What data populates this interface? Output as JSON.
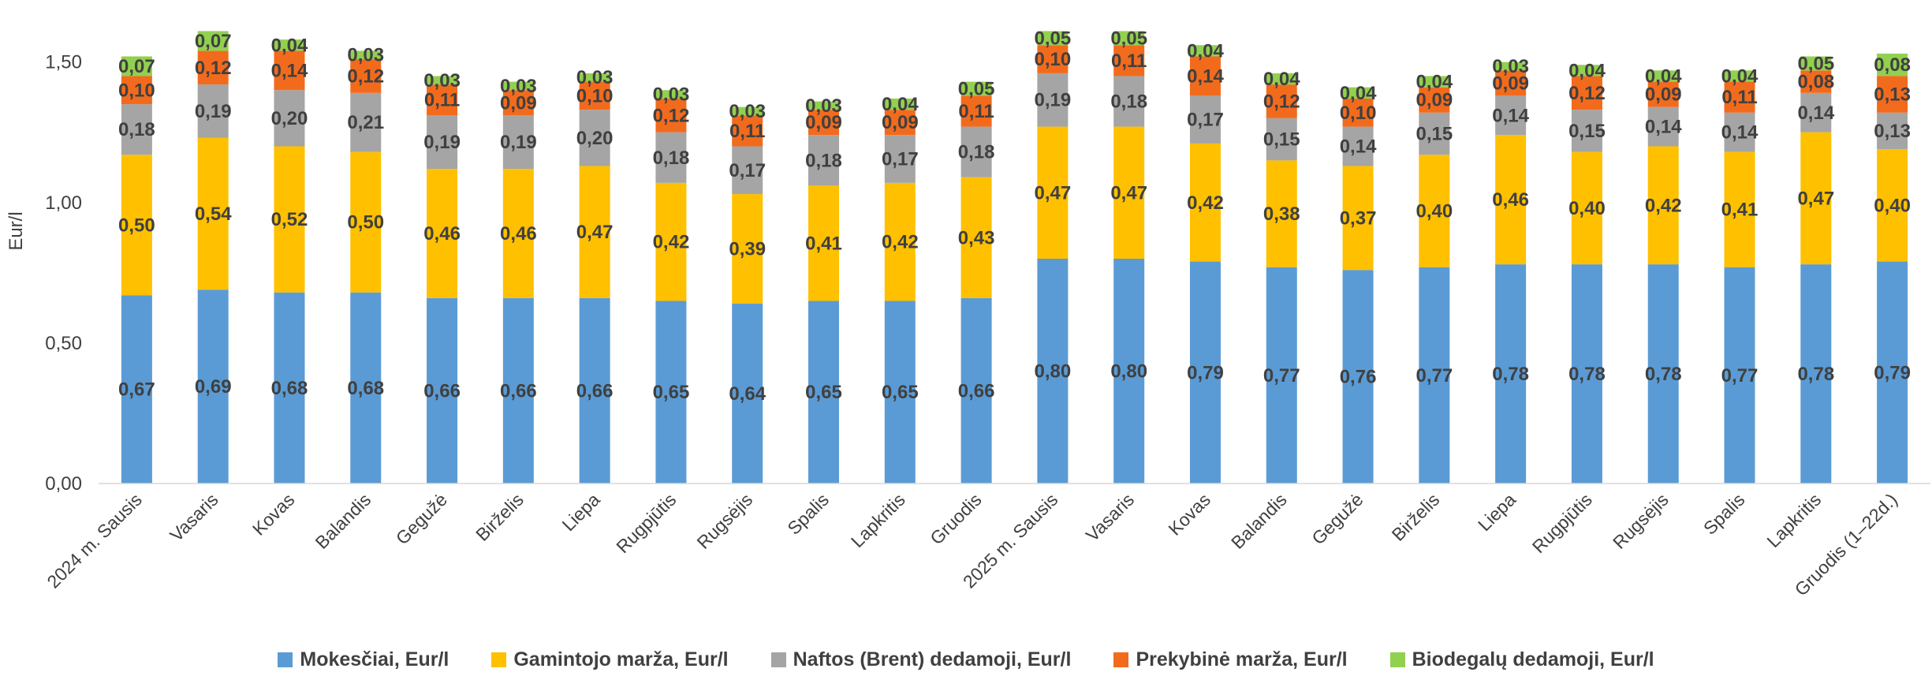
{
  "chart_data": {
    "type": "bar",
    "stacked": true,
    "ylabel": "Eur/l",
    "ylim": [
      0,
      1.6
    ],
    "yticks": [
      "0,00",
      "0,50",
      "1,00",
      "1,50"
    ],
    "ytick_values": [
      0,
      0.5,
      1.0,
      1.5
    ],
    "grid": false,
    "legend_position": "bottom",
    "categories": [
      "2024 m. Sausis",
      "Vasaris",
      "Kovas",
      "Balandis",
      "Gegužė",
      "Birželis",
      "Liepa",
      "Rugpjūtis",
      "Rugsėjis",
      "Spalis",
      "Lapkritis",
      "Gruodis",
      "2025 m. Sausis",
      "Vasaris",
      "Kovas",
      "Balandis",
      "Gegužė",
      "Birželis",
      "Liepa",
      "Rugpjūtis",
      "Rugsėjis",
      "Spalis",
      "Lapkritis",
      "Gruodis (1–22d.)"
    ],
    "series": [
      {
        "name": "Mokesčiai, Eur/l",
        "color": "#5B9BD5",
        "values": [
          0.67,
          0.69,
          0.68,
          0.68,
          0.66,
          0.66,
          0.66,
          0.65,
          0.64,
          0.65,
          0.65,
          0.66,
          0.8,
          0.8,
          0.79,
          0.77,
          0.76,
          0.77,
          0.78,
          0.78,
          0.78,
          0.77,
          0.78,
          0.79
        ],
        "labels": [
          "0,67",
          "0,69",
          "0,68",
          "0,68",
          "0,66",
          "0,66",
          "0,66",
          "0,65",
          "0,64",
          "0,65",
          "0,65",
          "0,66",
          "0,80",
          "0,80",
          "0,79",
          "0,77",
          "0,76",
          "0,77",
          "0,78",
          "0,78",
          "0,78",
          "0,77",
          "0,78",
          "0,79"
        ]
      },
      {
        "name": "Gamintojo marža, Eur/l",
        "color": "#FFC000",
        "values": [
          0.5,
          0.54,
          0.52,
          0.5,
          0.46,
          0.46,
          0.47,
          0.42,
          0.39,
          0.41,
          0.42,
          0.43,
          0.47,
          0.47,
          0.42,
          0.38,
          0.37,
          0.4,
          0.46,
          0.4,
          0.42,
          0.41,
          0.47,
          0.4
        ],
        "labels": [
          "0,50",
          "0,54",
          "0,52",
          "0,50",
          "0,46",
          "0,46",
          "0,47",
          "0,42",
          "0,39",
          "0,41",
          "0,42",
          "0,43",
          "0,47",
          "0,47",
          "0,42",
          "0,38",
          "0,37",
          "0,40",
          "0,46",
          "0,40",
          "0,42",
          "0,41",
          "0,47",
          "0,40"
        ]
      },
      {
        "name": "Naftos (Brent) dedamoji, Eur/l",
        "color": "#A5A5A5",
        "values": [
          0.18,
          0.19,
          0.2,
          0.21,
          0.19,
          0.19,
          0.2,
          0.18,
          0.17,
          0.18,
          0.17,
          0.18,
          0.19,
          0.18,
          0.17,
          0.15,
          0.14,
          0.15,
          0.14,
          0.15,
          0.14,
          0.14,
          0.14,
          0.13
        ],
        "labels": [
          "0,18",
          "0,19",
          "0,20",
          "0,21",
          "0,19",
          "0,19",
          "0,20",
          "0,18",
          "0,17",
          "0,18",
          "0,17",
          "0,18",
          "0,19",
          "0,18",
          "0,17",
          "0,15",
          "0,14",
          "0,15",
          "0,14",
          "0,15",
          "0,14",
          "0,14",
          "0,14",
          "0,13"
        ]
      },
      {
        "name": "Prekybinė marža, Eur/l",
        "color": "#F26B1D",
        "values": [
          0.1,
          0.12,
          0.14,
          0.12,
          0.11,
          0.09,
          0.1,
          0.12,
          0.11,
          0.09,
          0.09,
          0.11,
          0.1,
          0.11,
          0.14,
          0.12,
          0.1,
          0.09,
          0.09,
          0.12,
          0.09,
          0.11,
          0.08,
          0.13
        ],
        "labels": [
          "0,10",
          "0,12",
          "0,14",
          "0,12",
          "0,11",
          "0,09",
          "0,10",
          "0,12",
          "0,11",
          "0,09",
          "0,09",
          "0,11",
          "0,10",
          "0,11",
          "0,14",
          "0,12",
          "0,10",
          "0,09",
          "0,09",
          "0,12",
          "0,09",
          "0,11",
          "0,08",
          "0,13"
        ]
      },
      {
        "name": "Biodegalų dedamoji, Eur/l",
        "color": "#92D050",
        "values": [
          0.07,
          0.07,
          0.04,
          0.03,
          0.03,
          0.03,
          0.03,
          0.03,
          0.03,
          0.03,
          0.04,
          0.05,
          0.05,
          0.05,
          0.04,
          0.04,
          0.04,
          0.04,
          0.03,
          0.04,
          0.04,
          0.04,
          0.05,
          0.08
        ],
        "labels": [
          "0,07",
          "0,07",
          "0,04",
          "0,03",
          "0,03",
          "0,03",
          "0,03",
          "0,03",
          "0,03",
          "0,03",
          "0,04",
          "0,05",
          "0,05",
          "0,05",
          "0,04",
          "0,04",
          "0,04",
          "0,04",
          "0,03",
          "0,04",
          "0,04",
          "0,04",
          "0,05",
          "0,08"
        ]
      }
    ]
  }
}
